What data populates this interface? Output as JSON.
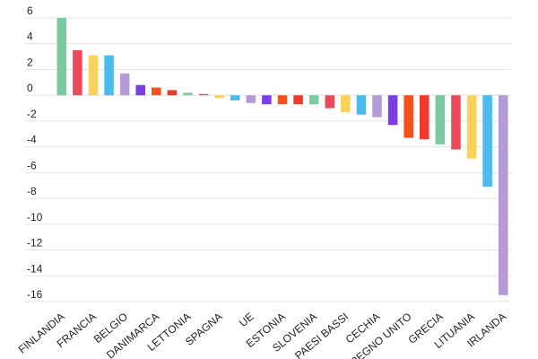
{
  "chart_data": {
    "type": "bar",
    "categories": [
      "FINLANDIA",
      null,
      "FRANCIA",
      null,
      "BELGIO",
      null,
      "DANIMARCA",
      null,
      "LETTONIA",
      null,
      "SPAGNA",
      null,
      "UE",
      null,
      "ESTONIA",
      null,
      "SLOVENIA",
      null,
      "PAESI BASSI",
      null,
      "CECHIA",
      null,
      "REGNO UNITO",
      null,
      "GRECIA",
      null,
      "LITUANIA",
      null,
      "IRLANDA"
    ],
    "values": [
      6.0,
      3.5,
      3.1,
      3.1,
      1.7,
      0.8,
      0.6,
      0.4,
      0.2,
      0.1,
      -0.2,
      -0.4,
      -0.6,
      -0.7,
      -0.7,
      -0.7,
      -0.7,
      -1.0,
      -1.3,
      -1.5,
      -1.7,
      -2.3,
      -3.3,
      -3.4,
      -3.8,
      -4.2,
      -4.9,
      -7.1,
      -15.5
    ],
    "colors": [
      "#7bcba0",
      "#ea4a5a",
      "#fbd15b",
      "#4cbbec",
      "#b49ad6",
      "#7b3ee6",
      "#f4511e",
      "#f03a2e",
      "#7bcba0",
      "#ea4a5a",
      "#fbd15b",
      "#4cbbec",
      "#b49ad6",
      "#7b3ee6",
      "#f4511e",
      "#f03a2e",
      "#7bcba0",
      "#ea4a5a",
      "#fbd15b",
      "#4cbbec",
      "#b49ad6",
      "#7b3ee6",
      "#f4511e",
      "#f03a2e",
      "#7bcba0",
      "#ea4a5a",
      "#fbd15b",
      "#4cbbec",
      "#b49ad6"
    ],
    "ylim": [
      -16,
      6
    ],
    "yticks": [
      6,
      4,
      2,
      0,
      -2,
      -4,
      -6,
      -8,
      -10,
      -12,
      -14,
      -16
    ],
    "grid": true
  }
}
